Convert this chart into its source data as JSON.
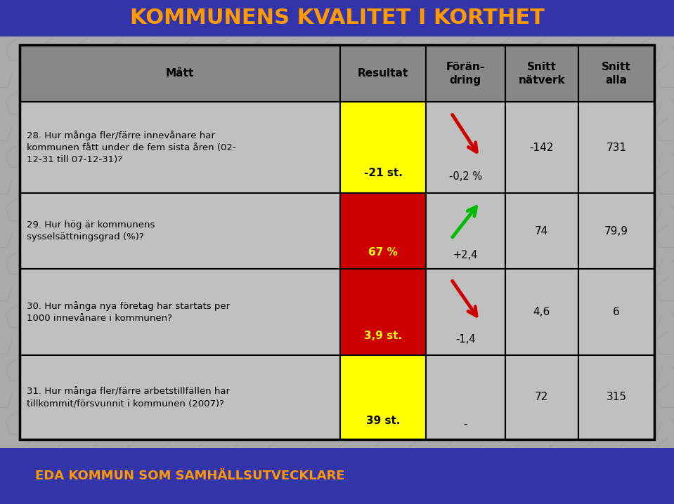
{
  "title": "KOMMUNENS KVALITET I KORTHET",
  "title_color": "#FF9900",
  "title_bg_color": "#3333AA",
  "footer_text": "EDA KOMMUN SOM SAMHÄLLSUTVECKLARE",
  "footer_color": "#FF9900",
  "footer_bg_color": "#3333AA",
  "bg_color": "#AAAAAA",
  "table_bg_color": "#C0C0C0",
  "header_bg_color": "#888888",
  "col_headers": [
    "Mått",
    "Resultat",
    "Förän-\ndring",
    "Snitt\nnätverk",
    "Snitt\nalla"
  ],
  "rows": [
    {
      "question": "28. Hur många fler/färre innevånare har\nkommunen fått under de fem sista åren (02-\n12-31 till 07-12-31)?",
      "result": "-21 st.",
      "result_bg": "#FFFF00",
      "result_color": "#000000",
      "forandring": "-0,2 %",
      "arrow": "down",
      "arrow_color": "#CC0000",
      "snitt_natverk": "-142",
      "snitt_alla": "731"
    },
    {
      "question": "29. Hur hög är kommunens\nsysselsättningsgrad (%)?",
      "result": "67 %",
      "result_bg": "#CC0000",
      "result_color": "#FFFF00",
      "forandring": "+2,4",
      "arrow": "up",
      "arrow_color": "#00BB00",
      "snitt_natverk": "74",
      "snitt_alla": "79,9"
    },
    {
      "question": "30. Hur många nya företag har startats per\n1000 innevånare i kommunen?",
      "result": "3,9 st.",
      "result_bg": "#CC0000",
      "result_color": "#FFFF00",
      "forandring": "-1,4",
      "arrow": "down",
      "arrow_color": "#CC0000",
      "snitt_natverk": "4,6",
      "snitt_alla": "6"
    },
    {
      "question": "31. Hur många fler/färre arbetstillfällen har\ntillkommit/försvunnit i kommunen (2007)?",
      "result": "39 st.",
      "result_bg": "#FFFF00",
      "result_color": "#000000",
      "forandring": "-",
      "arrow": "none",
      "arrow_color": "#CC0000",
      "snitt_natverk": "72",
      "snitt_alla": "315"
    }
  ]
}
